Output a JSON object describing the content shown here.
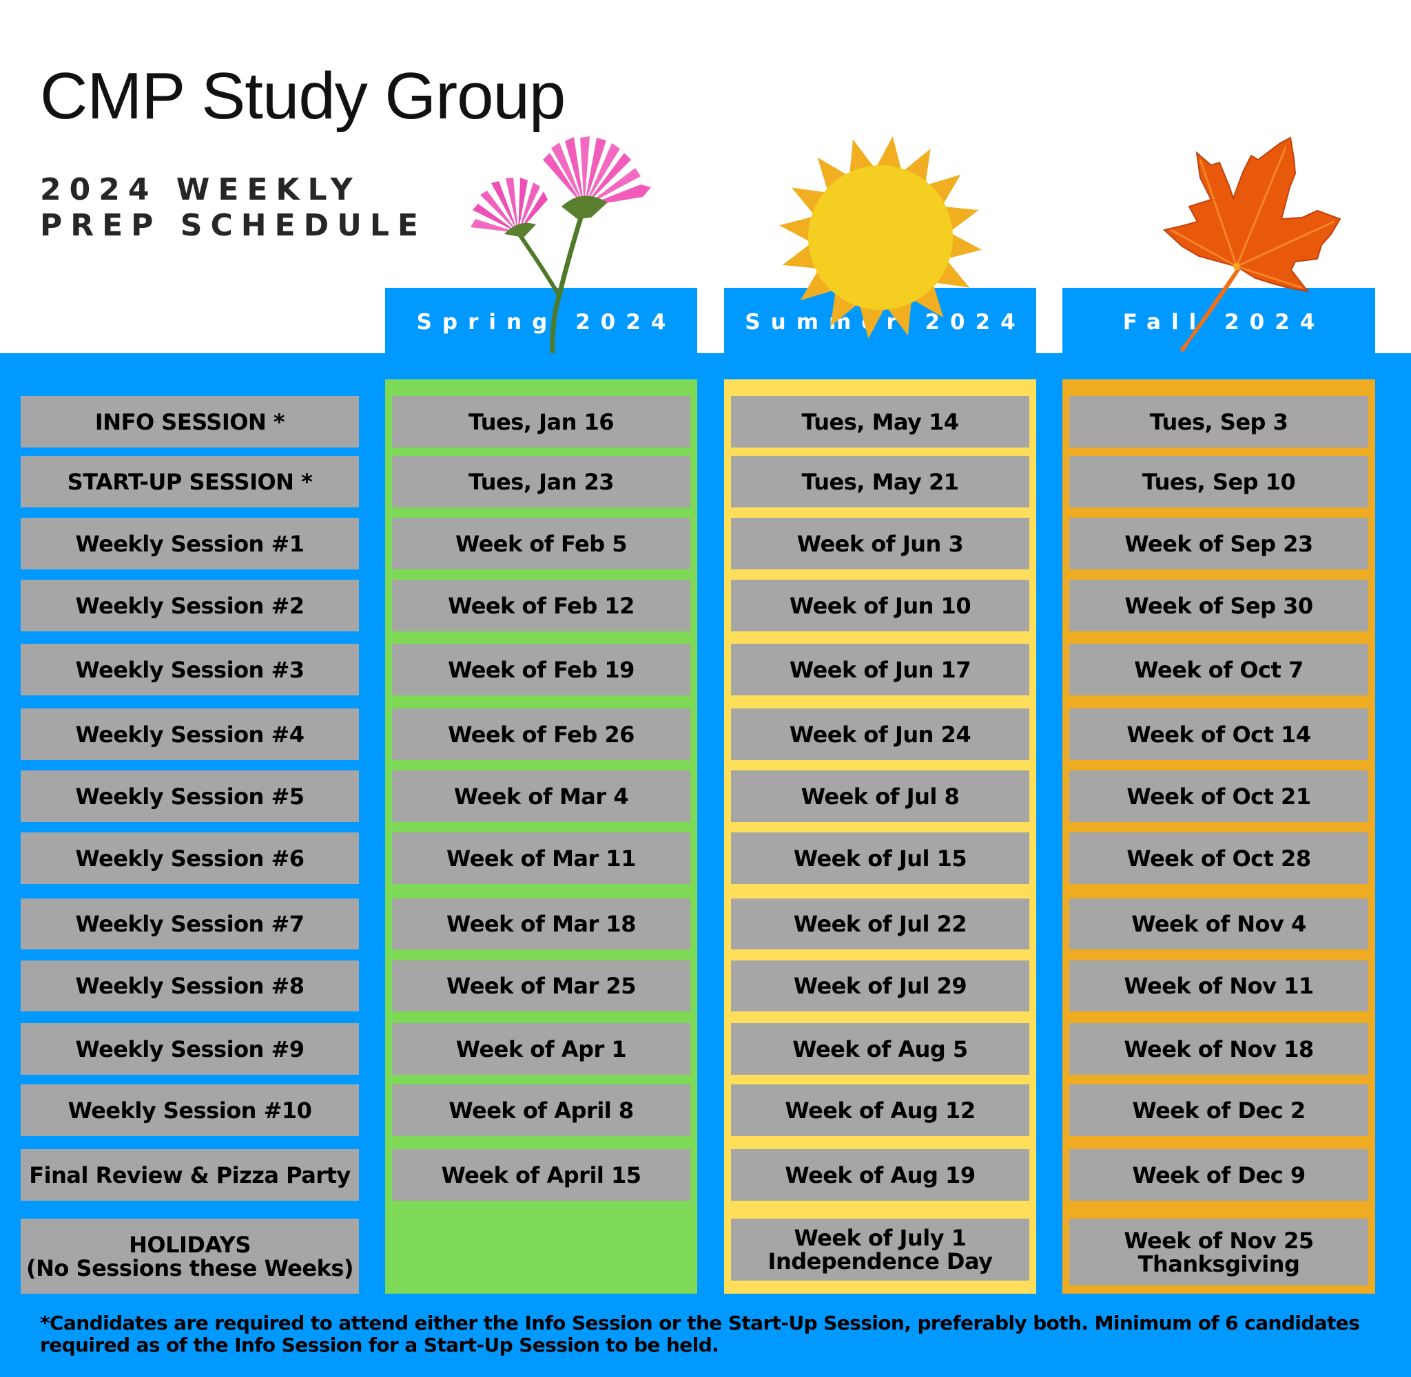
{
  "header": {
    "title": "CMP Study Group",
    "subtitle": "2024 WEEKLY PREP SCHEDULE"
  },
  "colors": {
    "band": "#0099FF",
    "spring": "#7ED957",
    "summer": "#FFDE59",
    "fall": "#EFAB22",
    "cell": "#A6A6A6"
  },
  "rows": [
    {
      "label": "INFO SESSION *",
      "spring": "Tues, Jan 16",
      "summer": "Tues, May 14",
      "fall": "Tues, Sep 3"
    },
    {
      "label": "START-UP SESSION *",
      "spring": "Tues, Jan 23",
      "summer": "Tues, May 21",
      "fall": "Tues, Sep 10"
    },
    {
      "label": "Weekly Session #1",
      "spring": "Week of Feb 5",
      "summer": "Week of Jun 3",
      "fall": "Week of Sep 23"
    },
    {
      "label": "Weekly Session #2",
      "spring": "Week of Feb 12",
      "summer": "Week of Jun 10",
      "fall": "Week of Sep 30"
    },
    {
      "label": "Weekly Session #3",
      "spring": "Week of Feb 19",
      "summer": "Week of Jun 17",
      "fall": "Week of Oct 7"
    },
    {
      "label": "Weekly Session #4",
      "spring": "Week of Feb 26",
      "summer": "Week of Jun 24",
      "fall": "Week of Oct 14"
    },
    {
      "label": "Weekly Session #5",
      "spring": "Week of Mar 4",
      "summer": "Week of Jul 8",
      "fall": "Week of Oct 21"
    },
    {
      "label": "Weekly Session #6",
      "spring": "Week of Mar 11",
      "summer": "Week of Jul 15",
      "fall": "Week of Oct 28"
    },
    {
      "label": "Weekly Session #7",
      "spring": "Week of Mar 18",
      "summer": "Week of Jul 22",
      "fall": "Week of Nov 4"
    },
    {
      "label": "Weekly Session #8",
      "spring": "Week of Mar 25",
      "summer": "Week of Jul 29",
      "fall": "Week of Nov 11"
    },
    {
      "label": "Weekly Session #9",
      "spring": "Week of Apr 1",
      "summer": "Week of Aug 5",
      "fall": "Week of Nov 18"
    },
    {
      "label": "Weekly Session #10",
      "spring": "Week of April 8",
      "summer": "Week of Aug 12",
      "fall": "Week of Dec 2"
    },
    {
      "label": "Final Review & Pizza Party",
      "spring": "Week of April 15",
      "summer": "Week of Aug 19",
      "fall": "Week of Dec 9"
    },
    {
      "label": "HOLIDAYS\n(No Sessions these Weeks)",
      "spring": null,
      "summer": "Week of July 1\nIndependence Day",
      "fall": "Week of Nov 25\nThanksgiving"
    }
  ],
  "footer": {
    "note": "*Candidates are required to attend either the Info Session or the Start-Up Session, preferably both. Minimum of 6 candidates required as of the Info Session for a Start-Up Session to be held."
  },
  "columns": [
    {
      "key": "spring",
      "label": "Spring 2024",
      "icon": "flower-icon"
    },
    {
      "key": "summer",
      "label": "Summer 2024",
      "icon": "sun-icon"
    },
    {
      "key": "fall",
      "label": "Fall 2024",
      "icon": "maple-leaf-icon"
    }
  ]
}
